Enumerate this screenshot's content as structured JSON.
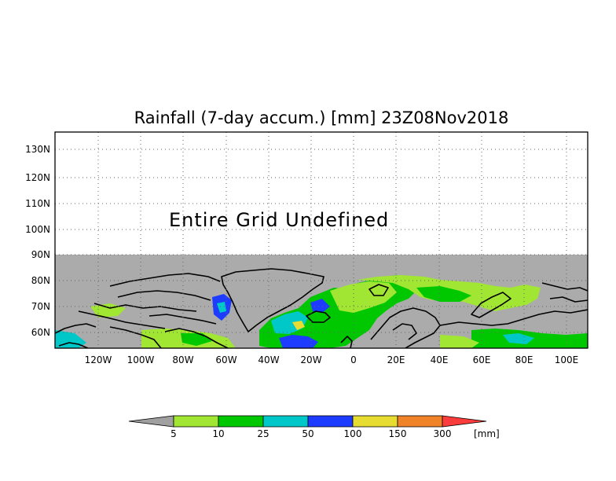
{
  "title": "Rainfall (7-day accum.) [mm] 23Z08Nov2018",
  "notice": "Entire Grid Undefined",
  "axes": {
    "lat_labels": [
      "130N",
      "120N",
      "110N",
      "100N",
      "90N",
      "80N",
      "70N",
      "60N"
    ],
    "lon_labels": [
      "120W",
      "100W",
      "80W",
      "60W",
      "40W",
      "20W",
      "0",
      "20E",
      "40E",
      "60E",
      "80E",
      "100E"
    ]
  },
  "colorbar": {
    "unit": "[mm]",
    "labels": [
      "5",
      "10",
      "25",
      "50",
      "100",
      "150",
      "300"
    ],
    "colors": {
      "below": "#a0a0a0",
      "bins": [
        "#a0e632",
        "#00c800",
        "#00c8c8",
        "#1e3cff",
        "#e6dc32",
        "#f08228",
        "#fa3c3c"
      ]
    }
  },
  "colors": {
    "undefined_area": "#ababab",
    "frame": "#000000",
    "grid": "#666666"
  }
}
